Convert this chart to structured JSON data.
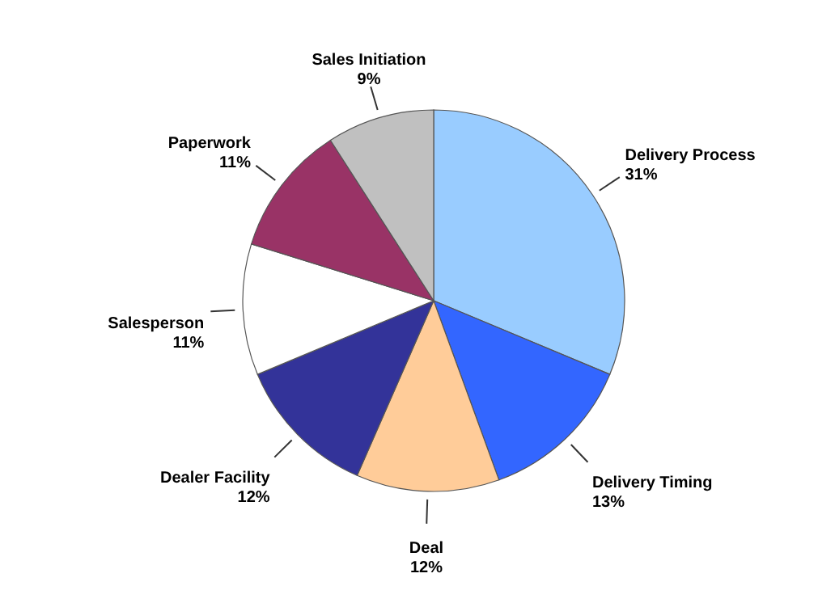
{
  "chart_data": {
    "type": "pie",
    "categories": [
      "Delivery Process",
      "Delivery Timing",
      "Deal",
      "Dealer Facility",
      "Salesperson",
      "Paperwork",
      "Sales Initiation"
    ],
    "values": [
      31,
      13,
      12,
      12,
      11,
      11,
      9
    ],
    "colors": [
      "#99ccff",
      "#3366ff",
      "#ffcc99",
      "#333399",
      "#ffffff",
      "#993366",
      "#c0c0c0"
    ],
    "value_labels": [
      "31%",
      "13%",
      "12%",
      "12%",
      "11%",
      "11%",
      "9%"
    ]
  }
}
